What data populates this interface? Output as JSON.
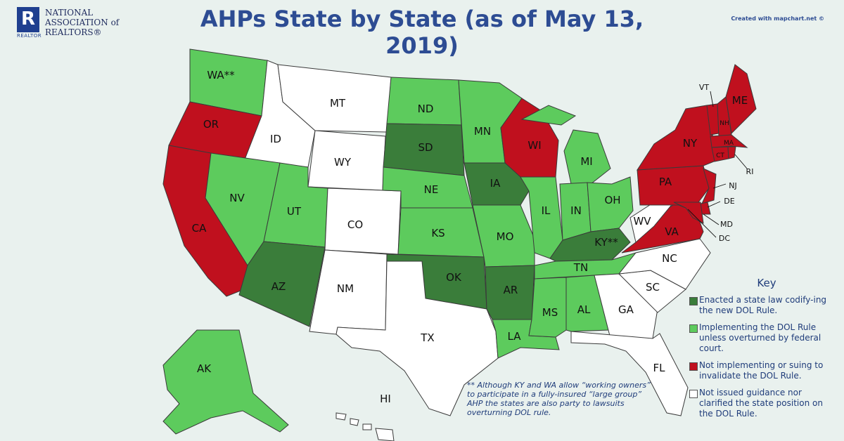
{
  "header": {
    "org_lines": [
      "NATIONAL",
      "ASSOCIATION of",
      "REALTORS®"
    ],
    "logo_letter": "R",
    "logo_tag": "REALTOR",
    "title": "AHPs State by State (as of May 13, 2019)",
    "credit": "Created with mapchart.net ©"
  },
  "colors": {
    "enacted": "#3a7d3a",
    "implementing": "#5dcb5d",
    "not_implementing": "#c0101e",
    "not_issued": "#ffffff",
    "background": "#e9f1ee",
    "text_blue": "#1f3c7a"
  },
  "key": {
    "title": "Key",
    "items": [
      {
        "id": "enacted",
        "label": "Enacted a state law codify-ing the new DOL Rule."
      },
      {
        "id": "implementing",
        "label": "Implementing the DOL Rule unless overturned by federal court."
      },
      {
        "id": "not_implementing",
        "label": "Not implementing or suing to invalidate the DOL Rule."
      },
      {
        "id": "not_issued",
        "label": "Not issued guidance nor clarified the state position on the DOL Rule."
      }
    ]
  },
  "footnote": {
    "marker": "**",
    "text": "Although KY and WA allow “working owners” to participate in a fully-insured “large group” AHP the states are also party to lawsuits overturning DOL rule."
  },
  "states": {
    "WA": {
      "label": "WA**",
      "category": "implementing"
    },
    "OR": {
      "label": "OR",
      "category": "not_implementing"
    },
    "CA": {
      "label": "CA",
      "category": "not_implementing"
    },
    "ID": {
      "label": "ID",
      "category": "not_issued"
    },
    "NV": {
      "label": "NV",
      "category": "implementing"
    },
    "MT": {
      "label": "MT",
      "category": "not_issued"
    },
    "WY": {
      "label": "WY",
      "category": "not_issued"
    },
    "UT": {
      "label": "UT",
      "category": "implementing"
    },
    "AZ": {
      "label": "AZ",
      "category": "enacted"
    },
    "CO": {
      "label": "CO",
      "category": "not_issued"
    },
    "NM": {
      "label": "NM",
      "category": "not_issued"
    },
    "ND": {
      "label": "ND",
      "category": "implementing"
    },
    "SD": {
      "label": "SD",
      "category": "enacted"
    },
    "NE": {
      "label": "NE",
      "category": "implementing"
    },
    "KS": {
      "label": "KS",
      "category": "implementing"
    },
    "OK": {
      "label": "OK",
      "category": "enacted"
    },
    "TX": {
      "label": "TX",
      "category": "not_issued"
    },
    "MN": {
      "label": "MN",
      "category": "implementing"
    },
    "IA": {
      "label": "IA",
      "category": "enacted"
    },
    "MO": {
      "label": "MO",
      "category": "implementing"
    },
    "AR": {
      "label": "AR",
      "category": "enacted"
    },
    "LA": {
      "label": "LA",
      "category": "implementing"
    },
    "WI": {
      "label": "WI",
      "category": "not_implementing"
    },
    "IL": {
      "label": "IL",
      "category": "implementing"
    },
    "MI": {
      "label": "MI",
      "category": "implementing"
    },
    "IN": {
      "label": "IN",
      "category": "implementing"
    },
    "OH": {
      "label": "OH",
      "category": "implementing"
    },
    "KY": {
      "label": "KY**",
      "category": "enacted"
    },
    "TN": {
      "label": "TN",
      "category": "implementing"
    },
    "MS": {
      "label": "MS",
      "category": "implementing"
    },
    "AL": {
      "label": "AL",
      "category": "implementing"
    },
    "GA": {
      "label": "GA",
      "category": "not_issued"
    },
    "FL": {
      "label": "FL",
      "category": "not_issued"
    },
    "SC": {
      "label": "SC",
      "category": "not_issued"
    },
    "NC": {
      "label": "NC",
      "category": "not_issued"
    },
    "VA": {
      "label": "VA",
      "category": "not_implementing"
    },
    "WV": {
      "label": "WV",
      "category": "not_issued"
    },
    "PA": {
      "label": "PA",
      "category": "not_implementing"
    },
    "NY": {
      "label": "NY",
      "category": "not_implementing"
    },
    "NJ": {
      "label": "NJ",
      "category": "not_implementing"
    },
    "DE": {
      "label": "DE",
      "category": "not_implementing"
    },
    "MD": {
      "label": "MD",
      "category": "not_implementing"
    },
    "DC": {
      "label": "DC",
      "category": "not_implementing"
    },
    "VT": {
      "label": "VT",
      "category": "not_implementing"
    },
    "NH": {
      "label": "NH",
      "category": "not_implementing"
    },
    "ME": {
      "label": "ME",
      "category": "not_implementing"
    },
    "MA": {
      "label": "MA",
      "category": "not_implementing"
    },
    "CT": {
      "label": "CT",
      "category": "not_implementing"
    },
    "RI": {
      "label": "RI",
      "category": "not_implementing"
    },
    "AK": {
      "label": "AK",
      "category": "implementing"
    },
    "HI": {
      "label": "HI",
      "category": "not_issued"
    }
  }
}
